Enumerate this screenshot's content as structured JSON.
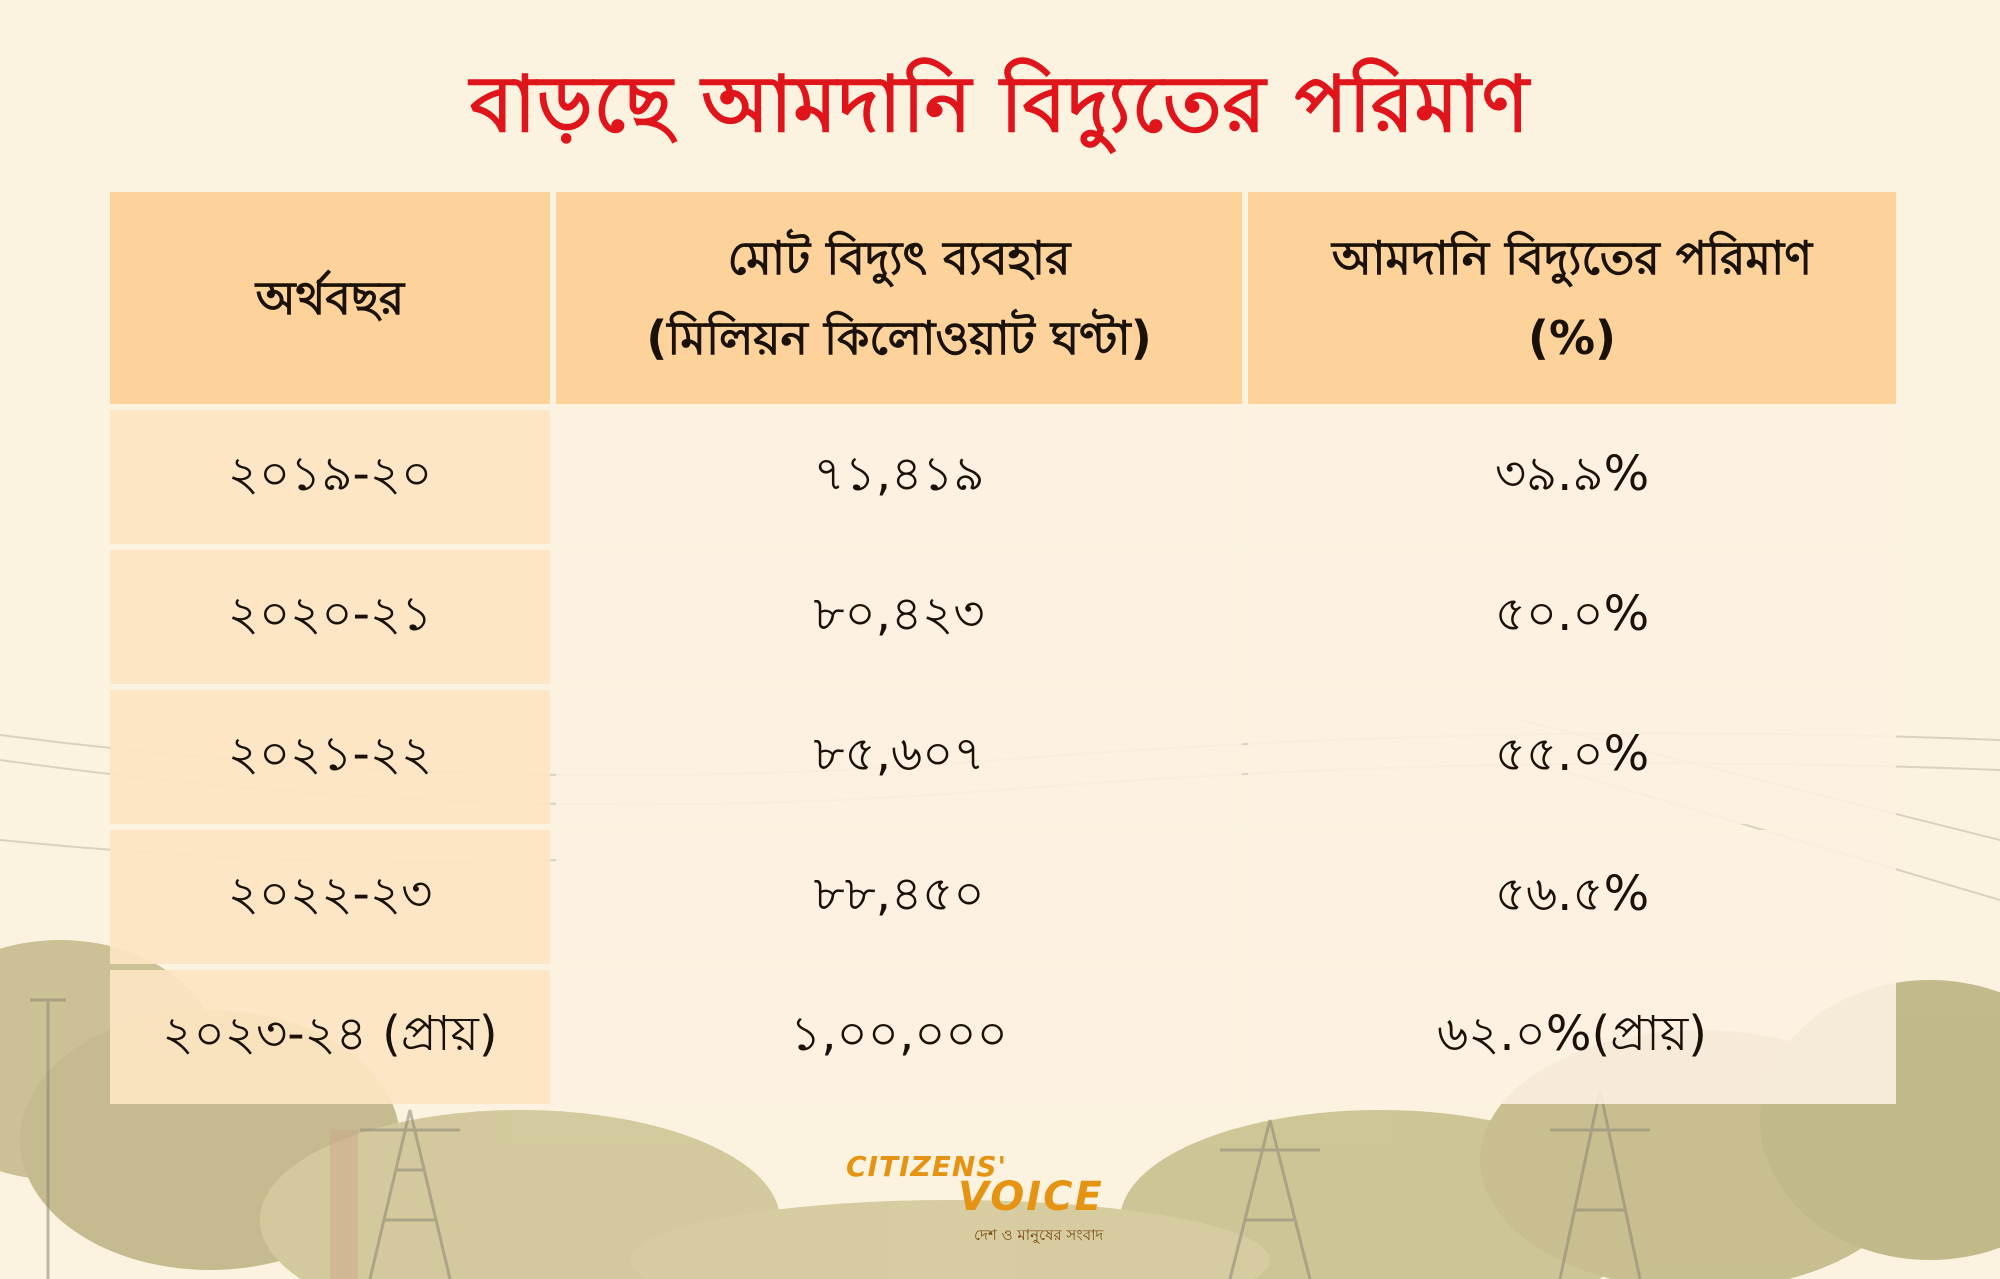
{
  "title": "বাড়ছে আমদানি বিদ্যুতের পরিমাণ",
  "table": {
    "headers": [
      {
        "line1": "অর্থবছর",
        "line2": ""
      },
      {
        "line1": "মোট বিদ্যুৎ ব্যবহার",
        "line2": "(মিলিয়ন কিলোওয়াট ঘণ্টা)"
      },
      {
        "line1": "আমদানি বিদ্যুতের পরিমাণ",
        "line2": "(%)"
      }
    ],
    "rows": [
      [
        "২০১৯-২০",
        "৭১,৪১৯",
        "৩৯.৯%"
      ],
      [
        "২০২০-২১",
        "৮০,৪২৩",
        "৫০.০%"
      ],
      [
        "২০২১-২২",
        "৮৫,৬০৭",
        "৫৫.০%"
      ],
      [
        "২০২২-২৩",
        "৮৮,৪৫০",
        "৫৬.৫%"
      ],
      [
        "২০২৩-২৪ (প্রায়)",
        "১,০০,০০০",
        "৬২.০%(প্রায়)"
      ]
    ]
  },
  "logo": {
    "top": "CITIZENS'",
    "main": "VOICE",
    "tagline": "দেশ ও মানুষের সংবাদ"
  },
  "colors": {
    "background": "#fbf3df",
    "title": "#e0141b",
    "header_fill": "#fed39b",
    "logo": "#e59312"
  }
}
